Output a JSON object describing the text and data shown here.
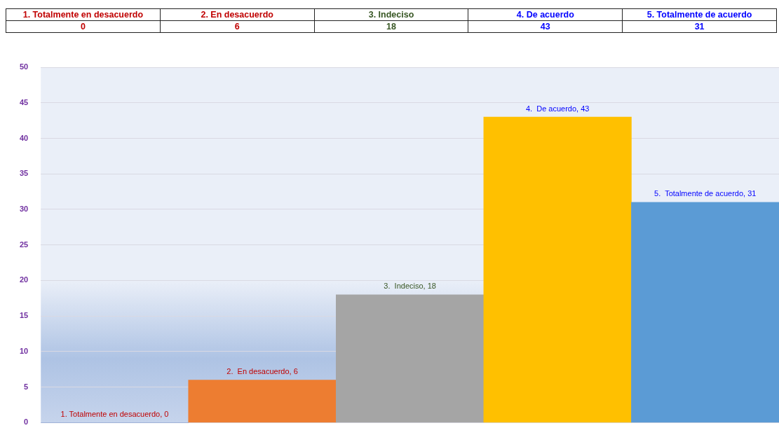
{
  "chart_data": {
    "type": "bar",
    "categories": [
      "1.  Totalmente en desacuerdo",
      "2.  En desacuerdo",
      "3.  Indeciso",
      "4.  De acuerdo",
      "5.  Totalmente de acuerdo"
    ],
    "values": [
      0,
      6,
      18,
      43,
      31
    ],
    "colors": [
      "#4472c4",
      "#ed7d31",
      "#a5a5a5",
      "#ffc000",
      "#5b9bd5"
    ],
    "ylim": [
      0,
      50
    ],
    "yticks": [
      0,
      5,
      10,
      15,
      20,
      25,
      30,
      35,
      40,
      45,
      50
    ],
    "value_labels": [
      "0",
      "6",
      "18",
      "43",
      "31"
    ],
    "annotations": [
      {
        "text": "1. Totalmente en desacuerdo, 0",
        "x": "1.  Totalmente en desacuerdo",
        "y": 0
      },
      {
        "text": "2.  En desacuerdo, 6",
        "x": "2.  En desacuerdo",
        "y": 6
      },
      {
        "text": "3.  Indeciso, 18",
        "x": "3.  Indeciso",
        "y": 18
      },
      {
        "text": "4.  De acuerdo, 43",
        "x": "4.  De acuerdo",
        "y": 43
      },
      {
        "text": "5.  Totalmente de acuerdo, 31",
        "x": "5.  Totalmente de acuerdo",
        "y": 31
      }
    ],
    "grid": "y",
    "tick_labels": "y",
    "legend": false
  }
}
